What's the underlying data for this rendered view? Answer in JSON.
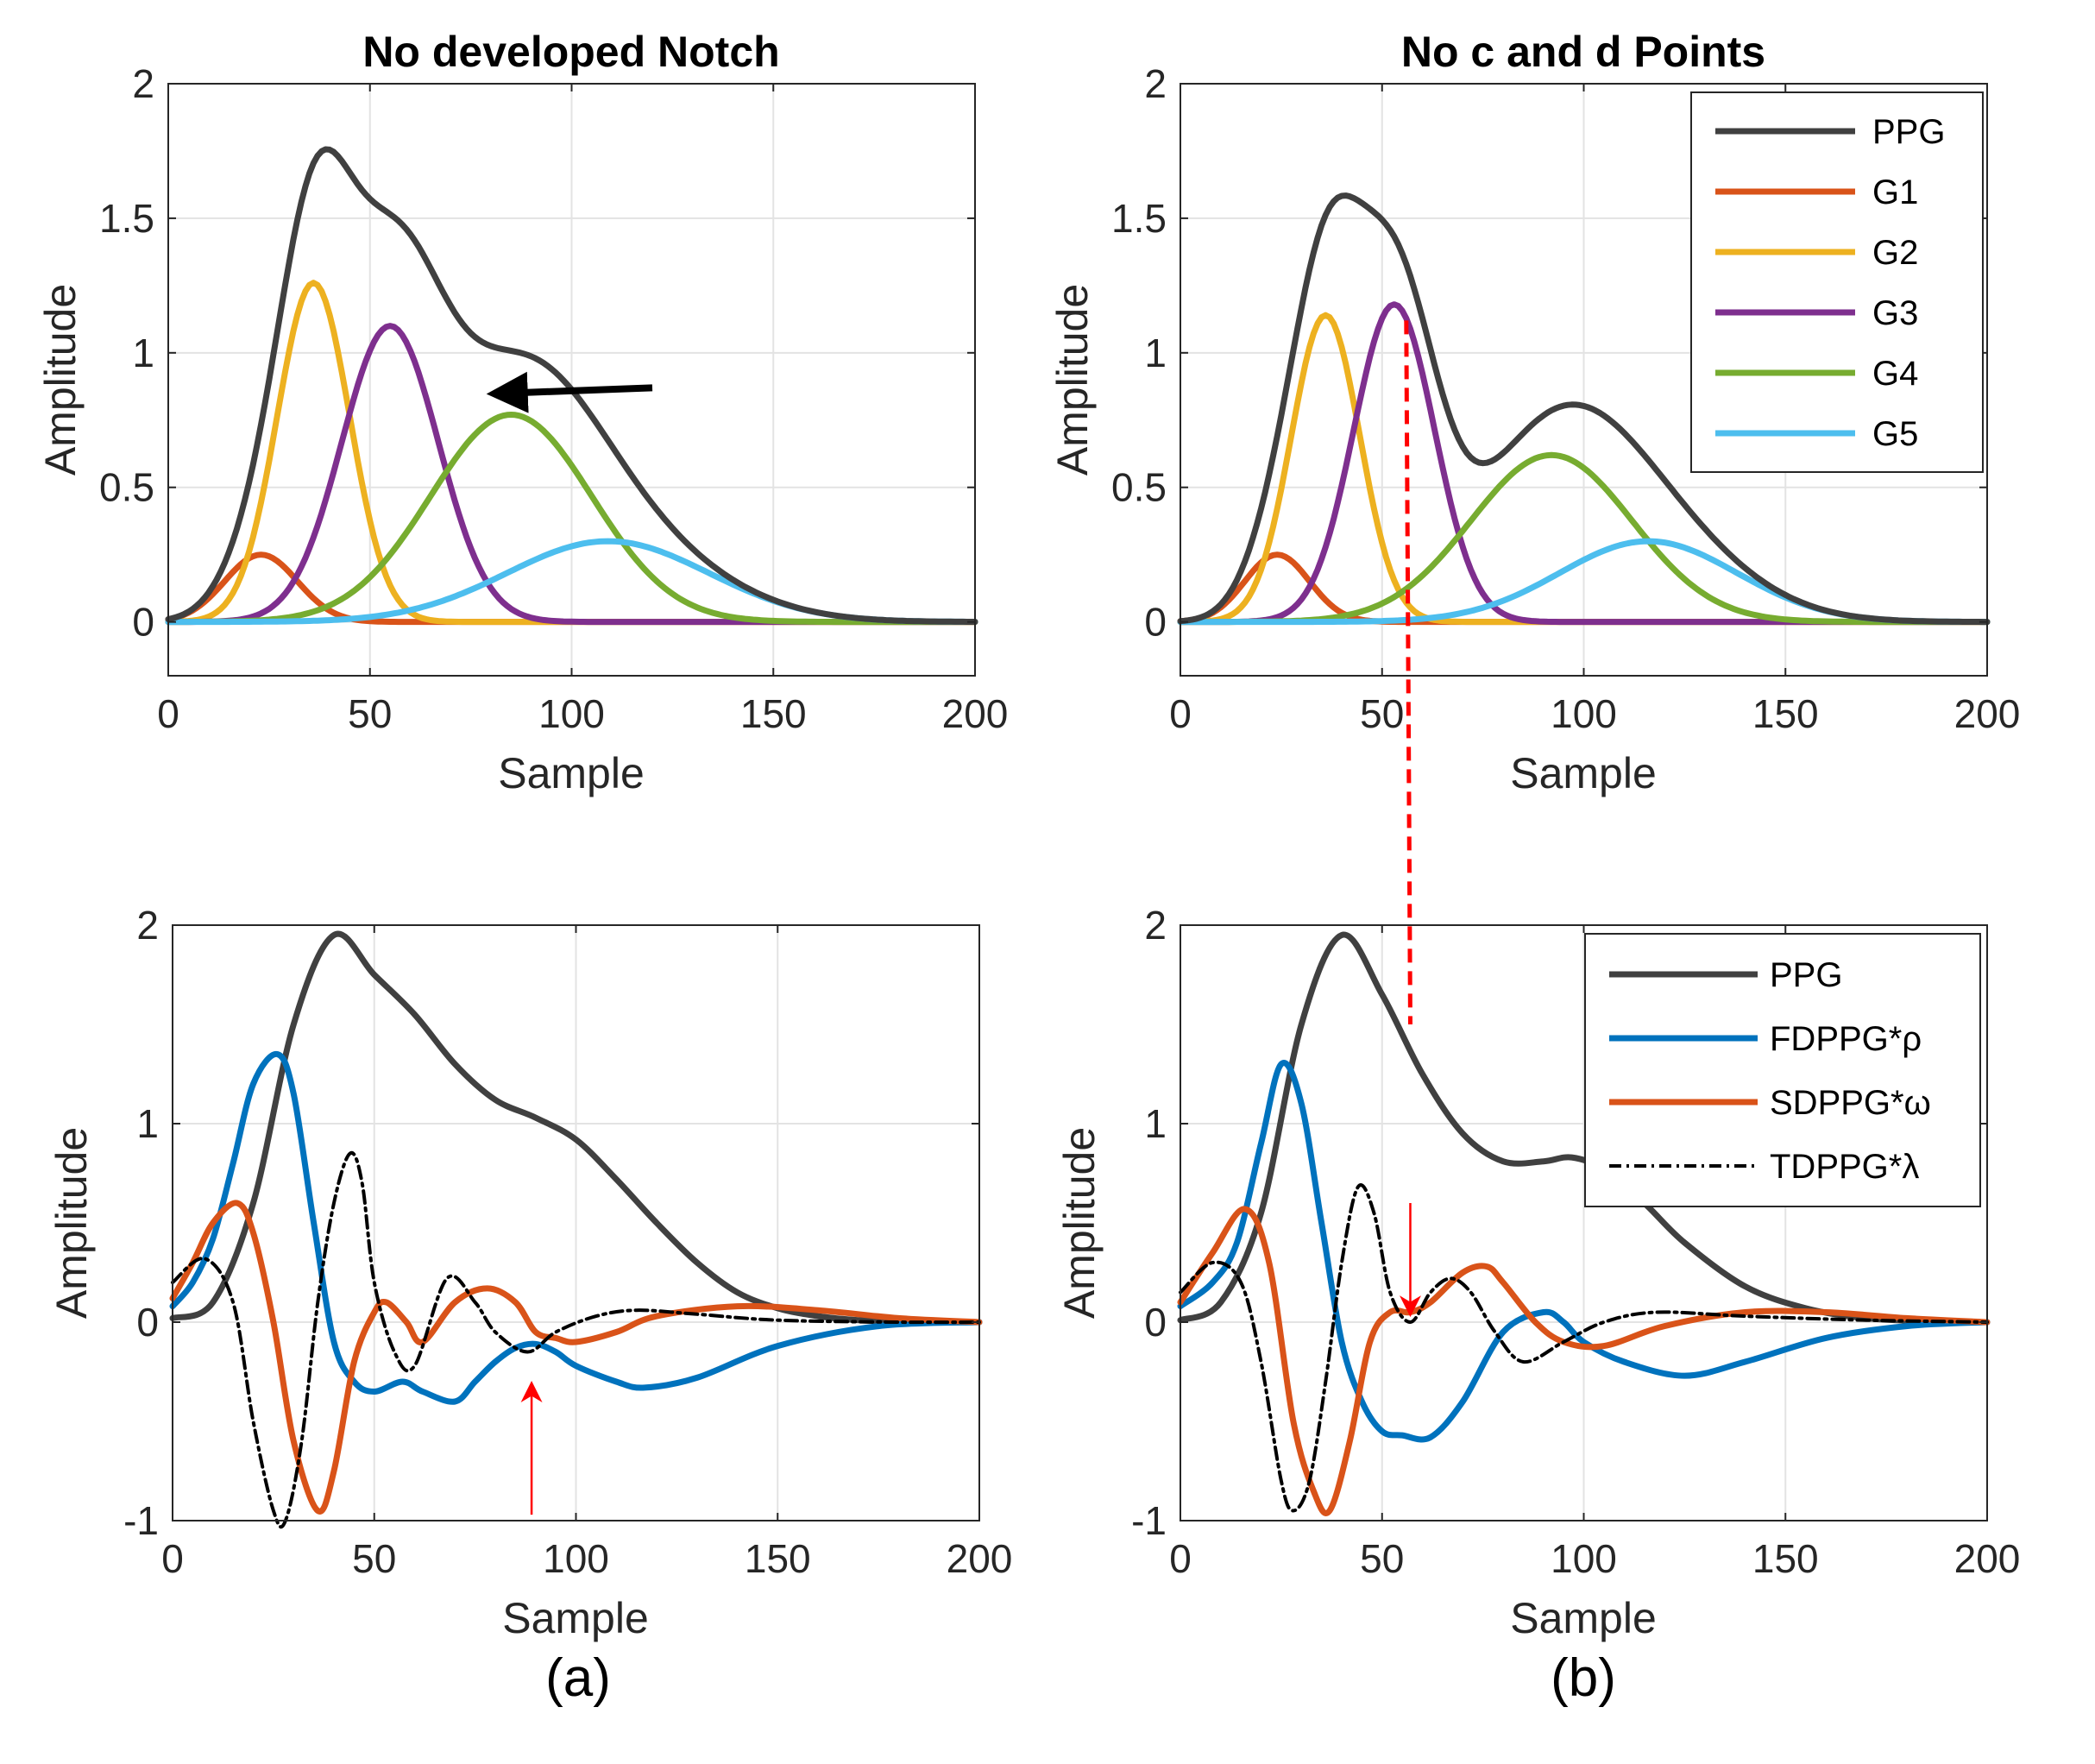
{
  "colors": {
    "PPG": "#404040",
    "G1": "#D95319",
    "G2": "#EDB120",
    "G3": "#7E2F8E",
    "G4": "#77AC30",
    "G5": "#4DBEEE",
    "FDPPG": "#0072BD",
    "SDPPG": "#D95319",
    "TDPPG": "#000000",
    "annotation_red": "#FF0000",
    "annotation_black": "#000000",
    "grid": "#E3E3E3",
    "axis": "#262626"
  },
  "panel_labels": [
    "(a)",
    "(b)"
  ],
  "chart_data": [
    {
      "id": "a-top",
      "type": "line",
      "title": "No developed Notch",
      "xlabel": "Sample",
      "ylabel": "Amplitude",
      "xlim": [
        0,
        200
      ],
      "ylim": [
        -0.2,
        2
      ],
      "xticks": [
        "0",
        "50",
        "100",
        "150",
        "200"
      ],
      "yticks": [
        "0",
        "0.5",
        "1",
        "1.5",
        "2"
      ],
      "grid": true,
      "gaussians": [
        {
          "name": "G1",
          "amplitude": 0.25,
          "center": 23,
          "width": 9
        },
        {
          "name": "G2",
          "amplitude": 1.26,
          "center": 36,
          "width": 9
        },
        {
          "name": "G3",
          "amplitude": 1.1,
          "center": 55,
          "width": 12
        },
        {
          "name": "G4",
          "amplitude": 0.77,
          "center": 85,
          "width": 20
        },
        {
          "name": "G5",
          "amplitude": 0.3,
          "center": 109,
          "width": 25
        }
      ],
      "annotation": {
        "type": "arrow",
        "color": "black",
        "from": [
          120,
          0.87
        ],
        "to": [
          84,
          0.85
        ]
      }
    },
    {
      "id": "b-top",
      "type": "line",
      "title": "No c and d Points",
      "xlabel": "Sample",
      "ylabel": "Amplitude",
      "xlim": [
        0,
        200
      ],
      "ylim": [
        -0.2,
        2
      ],
      "xticks": [
        "0",
        "50",
        "100",
        "150",
        "200"
      ],
      "yticks": [
        "0",
        "0.5",
        "1",
        "1.5",
        "2"
      ],
      "grid": true,
      "legend": {
        "placement": "top-right",
        "entries": [
          "PPG",
          "G1",
          "G2",
          "G3",
          "G4",
          "G5"
        ]
      },
      "gaussians": [
        {
          "name": "G1",
          "amplitude": 0.25,
          "center": 24,
          "width": 8
        },
        {
          "name": "G2",
          "amplitude": 1.14,
          "center": 36,
          "width": 8.5
        },
        {
          "name": "G3",
          "amplitude": 1.18,
          "center": 53,
          "width": 10
        },
        {
          "name": "G4",
          "amplitude": 0.62,
          "center": 92,
          "width": 20
        },
        {
          "name": "G5",
          "amplitude": 0.3,
          "center": 116,
          "width": 22
        }
      ]
    },
    {
      "id": "a-bottom",
      "type": "line",
      "xlabel": "Sample",
      "ylabel": "Amplitude",
      "xlim": [
        0,
        200
      ],
      "ylim": [
        -1,
        2
      ],
      "xticks": [
        "0",
        "50",
        "100",
        "150",
        "200"
      ],
      "yticks": [
        "-1",
        "0",
        "1",
        "2"
      ],
      "grid": true,
      "series": [
        {
          "name": "PPG",
          "x": [
            0,
            10,
            20,
            30,
            40,
            50,
            60,
            70,
            80,
            90,
            100,
            110,
            120,
            130,
            140,
            150,
            160,
            170,
            180,
            200
          ],
          "y": [
            0.02,
            0.1,
            0.6,
            1.5,
            1.95,
            1.75,
            1.55,
            1.3,
            1.12,
            1.03,
            0.92,
            0.72,
            0.5,
            0.3,
            0.15,
            0.07,
            0.03,
            0.01,
            0.005,
            0
          ]
        },
        {
          "name": "FDPPG*ρ",
          "x": [
            0,
            5,
            10,
            15,
            20,
            26,
            30,
            35,
            40,
            45,
            50,
            57,
            62,
            70,
            75,
            80,
            85,
            90,
            95,
            100,
            110,
            117,
            130,
            150,
            175,
            200
          ],
          "y": [
            0.08,
            0.2,
            0.42,
            0.8,
            1.2,
            1.35,
            1.15,
            0.5,
            -0.1,
            -0.3,
            -0.35,
            -0.3,
            -0.35,
            -0.4,
            -0.3,
            -0.2,
            -0.13,
            -0.11,
            -0.15,
            -0.22,
            -0.3,
            -0.33,
            -0.28,
            -0.12,
            -0.02,
            0
          ]
        },
        {
          "name": "SDPPG*ω",
          "x": [
            0,
            5,
            10,
            16,
            20,
            25,
            30,
            36,
            40,
            45,
            50,
            53,
            58,
            62,
            70,
            78,
            85,
            90,
            95,
            100,
            110,
            120,
            140,
            160,
            180,
            200
          ],
          "y": [
            0.12,
            0.3,
            0.5,
            0.6,
            0.45,
            0.0,
            -0.6,
            -0.95,
            -0.75,
            -0.2,
            0.05,
            0.1,
            0.0,
            -0.1,
            0.1,
            0.17,
            0.1,
            -0.05,
            -0.08,
            -0.1,
            -0.05,
            0.03,
            0.08,
            0.06,
            0.02,
            0
          ]
        },
        {
          "name": "TDPPG*λ",
          "x": [
            0,
            8,
            15,
            20,
            25,
            28,
            32,
            36,
            40,
            44,
            47,
            50,
            55,
            60,
            68,
            75,
            80,
            88,
            95,
            105,
            115,
            130,
            150,
            180,
            200
          ],
          "y": [
            0.2,
            0.32,
            0.1,
            -0.5,
            -0.95,
            -1.0,
            -0.6,
            0.1,
            0.6,
            0.85,
            0.7,
            0.2,
            -0.15,
            -0.22,
            0.22,
            0.1,
            -0.05,
            -0.15,
            -0.05,
            0.03,
            0.06,
            0.04,
            0.01,
            0,
            0
          ]
        }
      ],
      "annotation": {
        "type": "arrow",
        "color": "red",
        "from": [
          89,
          -0.97
        ],
        "to": [
          89,
          -0.35
        ]
      }
    },
    {
      "id": "b-bottom",
      "type": "line",
      "xlabel": "Sample",
      "ylabel": "Amplitude",
      "xlim": [
        0,
        200
      ],
      "ylim": [
        -1,
        2
      ],
      "xticks": [
        "0",
        "50",
        "100",
        "150",
        "200"
      ],
      "yticks": [
        "-1",
        "0",
        "1",
        "2"
      ],
      "grid": true,
      "legend": {
        "placement": "top-right",
        "entries": [
          "PPG",
          "FDPPG*ρ",
          "SDPPG*ω",
          "TDPPG*λ"
        ]
      },
      "series": [
        {
          "name": "PPG",
          "x": [
            0,
            10,
            20,
            30,
            40,
            50,
            60,
            70,
            80,
            90,
            97,
            105,
            115,
            125,
            140,
            155,
            170,
            185,
            200
          ],
          "y": [
            0.01,
            0.1,
            0.55,
            1.5,
            1.95,
            1.65,
            1.25,
            0.95,
            0.81,
            0.81,
            0.83,
            0.77,
            0.6,
            0.4,
            0.18,
            0.07,
            0.02,
            0.005,
            0
          ]
        },
        {
          "name": "FDPPG*ρ",
          "x": [
            0,
            8,
            14,
            20,
            25,
            30,
            35,
            40,
            45,
            50,
            55,
            62,
            70,
            80,
            90,
            95,
            100,
            110,
            125,
            140,
            160,
            180,
            200
          ],
          "y": [
            0.08,
            0.2,
            0.4,
            0.9,
            1.3,
            1.1,
            0.5,
            -0.1,
            -0.4,
            -0.55,
            -0.57,
            -0.58,
            -0.4,
            -0.05,
            0.05,
            0.0,
            -0.1,
            -0.2,
            -0.27,
            -0.2,
            -0.08,
            -0.02,
            0
          ]
        },
        {
          "name": "SDPPG*ω",
          "x": [
            0,
            8,
            16,
            22,
            28,
            33,
            37,
            42,
            47,
            52,
            57,
            62,
            70,
            76,
            80,
            88,
            95,
            105,
            120,
            140,
            160,
            180,
            200
          ],
          "y": [
            0.1,
            0.35,
            0.57,
            0.3,
            -0.5,
            -0.85,
            -0.95,
            -0.6,
            -0.1,
            0.05,
            0.05,
            0.1,
            0.25,
            0.28,
            0.2,
            0.0,
            -0.1,
            -0.12,
            -0.02,
            0.05,
            0.05,
            0.02,
            0
          ]
        },
        {
          "name": "TDPPG*λ",
          "x": [
            0,
            8,
            15,
            20,
            25,
            28,
            32,
            36,
            40,
            44,
            48,
            52,
            57,
            62,
            67,
            72,
            78,
            85,
            95,
            105,
            118,
            140,
            170,
            200
          ],
          "y": [
            0.15,
            0.3,
            0.2,
            -0.2,
            -0.8,
            -0.95,
            -0.8,
            -0.3,
            0.3,
            0.68,
            0.55,
            0.15,
            0.0,
            0.15,
            0.22,
            0.15,
            -0.05,
            -0.2,
            -0.1,
            0.0,
            0.05,
            0.03,
            0.01,
            0
          ]
        }
      ],
      "annotation": {
        "type": "arrow",
        "color": "red",
        "from": [
          57,
          0.6
        ],
        "to": [
          57,
          0.08
        ]
      }
    }
  ],
  "cross_annotation": {
    "type": "dashed-line",
    "color": "red",
    "from_panel": "b-top",
    "from": [
      56,
      1.12
    ],
    "to_panel": "b-bottom",
    "to": [
      57,
      1.5
    ]
  }
}
